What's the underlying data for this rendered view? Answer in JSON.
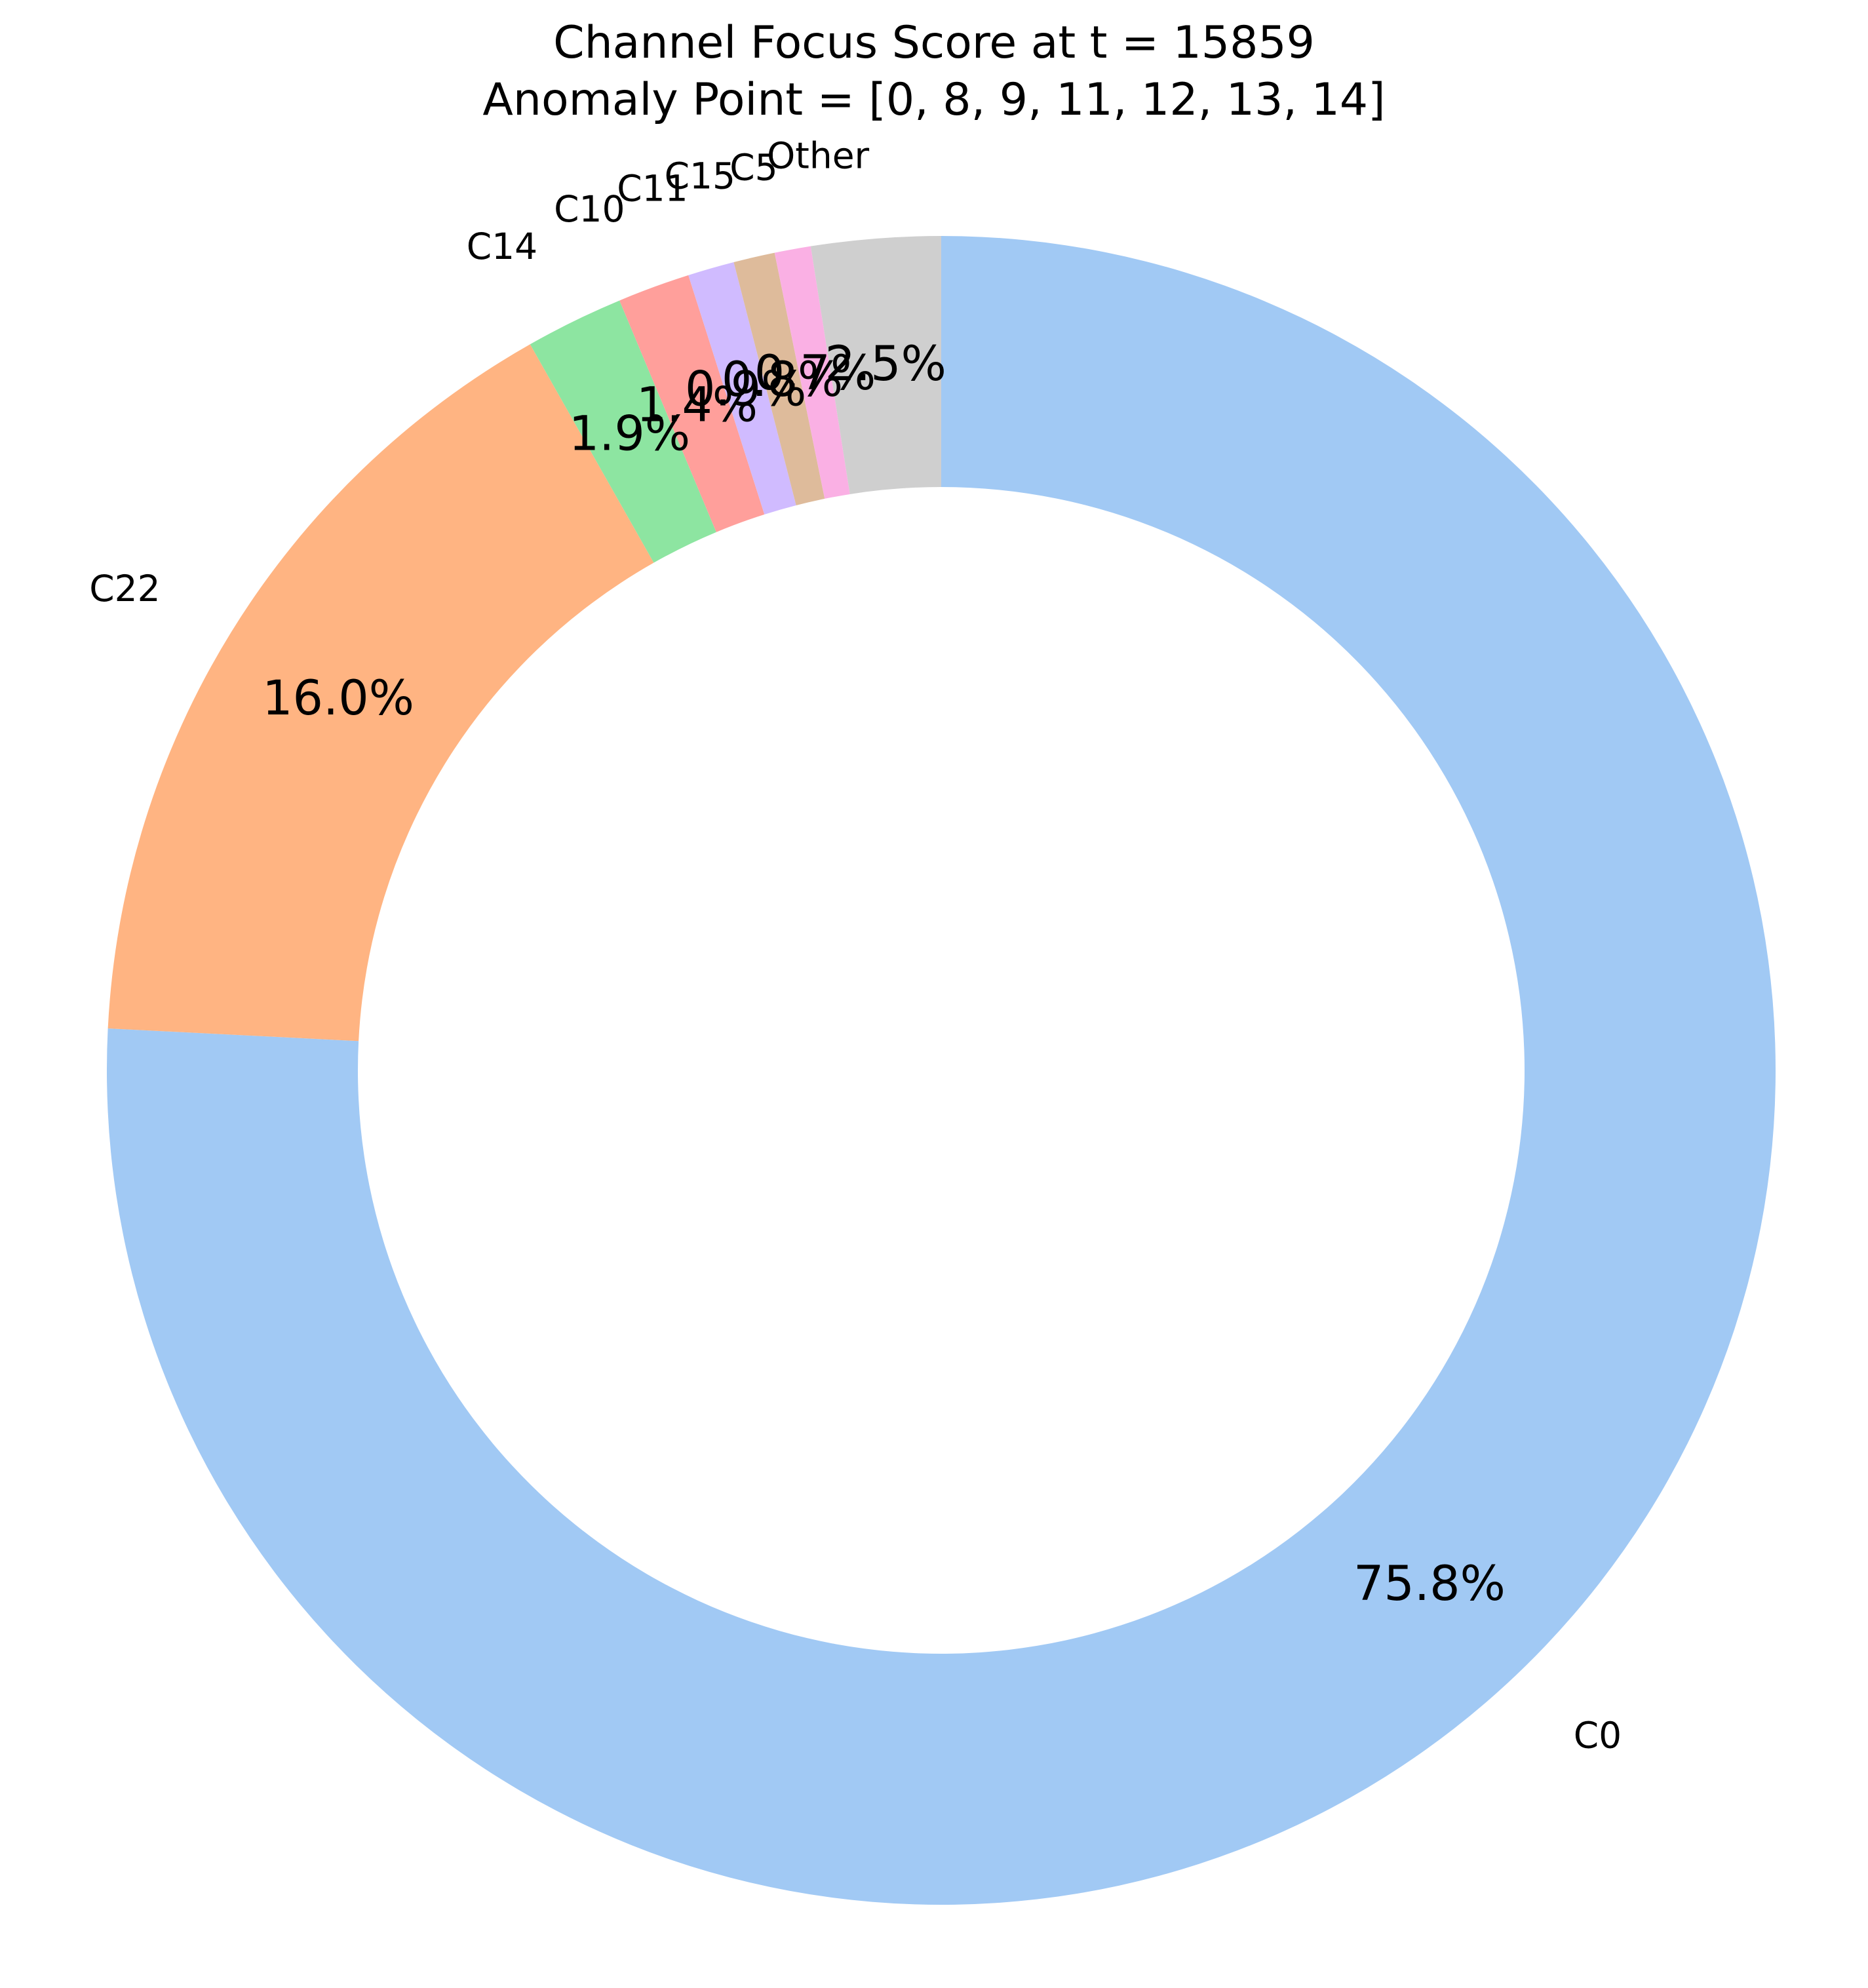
{
  "chart_data": {
    "type": "pie",
    "variant": "donut",
    "title_lines": [
      "Channel Focus Score at t = 15859",
      "Anomaly Point = [0, 8, 9, 11, 12, 13, 14]"
    ],
    "start_angle_deg": 90,
    "direction": "clockwise",
    "slices": [
      {
        "label": "C0",
        "pct_label": "75.8%",
        "value": 75.8,
        "color": "#a1c9f4"
      },
      {
        "label": "C22",
        "pct_label": "16.0%",
        "value": 16.0,
        "color": "#ffb482"
      },
      {
        "label": "C14",
        "pct_label": "1.9%",
        "value": 1.9,
        "color": "#8de5a1"
      },
      {
        "label": "C10",
        "pct_label": "1.4%",
        "value": 1.4,
        "color": "#ff9f9b"
      },
      {
        "label": "C11",
        "pct_label": "0.9%",
        "value": 0.9,
        "color": "#d0bbff"
      },
      {
        "label": "C15",
        "pct_label": "0.8%",
        "value": 0.8,
        "color": "#debb9b"
      },
      {
        "label": "C5",
        "pct_label": "0.7%",
        "value": 0.7,
        "color": "#fab0e4"
      },
      {
        "label": "Other",
        "pct_label": "2.5%",
        "value": 2.5,
        "color": "#cfcfcf"
      }
    ],
    "legend": "none",
    "grid": false
  }
}
